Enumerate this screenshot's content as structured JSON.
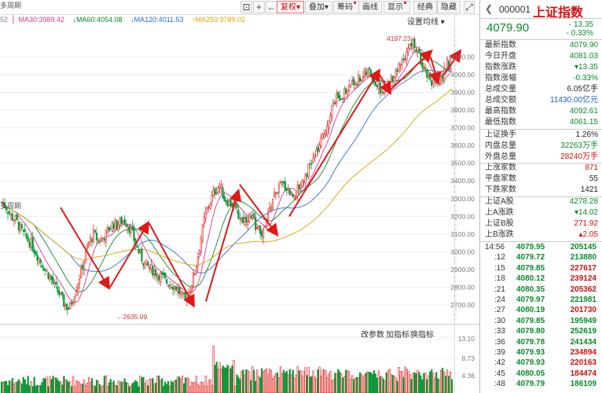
{
  "toolbar": {
    "fuquan": "复权",
    "diejia": "叠加",
    "choumа": "筹码",
    "huaxian": "画线",
    "xianshi": "显示",
    "jingdian": "经典",
    "yincang": "隐藏"
  },
  "period_label": "多周期",
  "ma_legend": {
    "prefix": "52",
    "ma30": "MA30:3989.42",
    "ma60": "MA60:4054.08",
    "ma120": "MA120:4011.53",
    "ma250": "MA250:3789.02"
  },
  "settings_label": "设置均线",
  "indicator_tabs": [
    "改参数",
    "加指标",
    "换指标"
  ],
  "annotations": {
    "high": "4197.23",
    "low": "←2635.09"
  },
  "colors": {
    "ma30": "#d03a9a",
    "ma60": "#0a8a2a",
    "ma120": "#2a6fd0",
    "ma250": "#e0a000",
    "up": "#e01818",
    "down": "#0a9a3a"
  },
  "chart_data": {
    "type": "candlestick",
    "y_axis_ticks": [
      "4100.00",
      "4000.00",
      "3900.00",
      "3800.00",
      "3700.00",
      "3600.00",
      "3500.00",
      "3400.00",
      "3300.00",
      "3200.00",
      "3100.00",
      "3000.00",
      "2900.00",
      "2800.00",
      "2700.00"
    ],
    "volume_axis_ticks": [
      "13.10",
      "8.73",
      "4.36"
    ],
    "ylim": [
      2650,
      4200
    ],
    "price_path": [
      3280,
      3250,
      3200,
      3180,
      3120,
      3080,
      3050,
      3000,
      2950,
      2900,
      2860,
      2800,
      2760,
      2700,
      2680,
      2760,
      2850,
      2950,
      3050,
      3100,
      3060,
      3080,
      3120,
      3160,
      3150,
      3180,
      3160,
      3100,
      3020,
      2960,
      2920,
      2900,
      2880,
      2860,
      2830,
      2820,
      2800,
      2760,
      2720,
      2800,
      2900,
      3050,
      3200,
      3280,
      3340,
      3380,
      3300,
      3280,
      3260,
      3200,
      3180,
      3200,
      3180,
      3120,
      3100,
      3200,
      3300,
      3350,
      3380,
      3360,
      3320,
      3340,
      3400,
      3450,
      3500,
      3560,
      3620,
      3700,
      3800,
      3860,
      3880,
      3900,
      3940,
      3960,
      3980,
      4000,
      4020,
      3960,
      3920,
      3900,
      3950,
      4000,
      4050,
      4100,
      4150,
      4180,
      4120,
      4060,
      4000,
      3960,
      3920,
      4000,
      4060,
      4080
    ]
  },
  "quote": {
    "code": "000001",
    "name": "上证指数",
    "price": "4079.90",
    "change": "- 13.35",
    "change_pct": "- 0.33%"
  },
  "stats": [
    {
      "label": "最新指数",
      "value": "4079.90",
      "color": "g"
    },
    {
      "label": "今日开盘",
      "value": "4081.03",
      "color": "g"
    },
    {
      "label": "指数涨跌",
      "value": "▾13.35",
      "color": "g"
    },
    {
      "label": "指数涨幅",
      "value": "-0.33%",
      "color": "g"
    },
    {
      "label": "总成交量",
      "value": "6.05亿手",
      "color": "k"
    },
    {
      "label": "总成交额",
      "value": "11430.00亿元",
      "color": "b"
    },
    {
      "label": "最高指数",
      "value": "4092.61",
      "color": "g"
    },
    {
      "label": "最低指数",
      "value": "4061.15",
      "color": "g"
    }
  ],
  "stats2": [
    {
      "label": "上证换手",
      "value": "1.26%",
      "color": "k"
    },
    {
      "label": "内盘总量",
      "value": "32263万手",
      "color": "g"
    },
    {
      "label": "外盘总量",
      "value": "28240万手",
      "color": "r"
    }
  ],
  "stats3": [
    {
      "label": "上涨家数",
      "value": "871",
      "color": "r"
    },
    {
      "label": "平盘家数",
      "value": "55",
      "color": "k"
    },
    {
      "label": "下跌家数",
      "value": "1421",
      "color": "k"
    }
  ],
  "stats4": [
    {
      "label": "上证A股",
      "value": "4278.28",
      "color": "g"
    },
    {
      "label": "上A涨跌",
      "value": "▾14.02",
      "color": "g"
    },
    {
      "label": "上证B股",
      "value": "271.92",
      "color": "r"
    },
    {
      "label": "上B涨跌",
      "value": "▴2.05",
      "color": "r"
    }
  ],
  "ticks": [
    {
      "time": "14:56",
      "price": "4079.95",
      "vol": "205145",
      "color": "g"
    },
    {
      "time": ":12",
      "price": "4079.72",
      "vol": "213880",
      "color": "g"
    },
    {
      "time": ":15",
      "price": "4079.85",
      "vol": "227617",
      "color": "r"
    },
    {
      "time": ":18",
      "price": "4080.12",
      "vol": "239124",
      "color": "r"
    },
    {
      "time": ":21",
      "price": "4080.35",
      "vol": "205362",
      "color": "r"
    },
    {
      "time": ":24",
      "price": "4079.97",
      "vol": "221981",
      "color": "g"
    },
    {
      "time": ":27",
      "price": "4080.19",
      "vol": "201730",
      "color": "r"
    },
    {
      "time": ":30",
      "price": "4079.85",
      "vol": "195949",
      "color": "g"
    },
    {
      "time": ":33",
      "price": "4079.80",
      "vol": "252619",
      "color": "g"
    },
    {
      "time": ":36",
      "price": "4079.78",
      "vol": "241434",
      "color": "g"
    },
    {
      "time": ":39",
      "price": "4079.93",
      "vol": "234894",
      "color": "r"
    },
    {
      "time": ":42",
      "price": "4079.93",
      "vol": "220163",
      "color": "r"
    },
    {
      "time": ":45",
      "price": "4080.05",
      "vol": "184474",
      "color": "r"
    },
    {
      "time": ":48",
      "price": "4079.79",
      "vol": "186109",
      "color": "g"
    }
  ]
}
